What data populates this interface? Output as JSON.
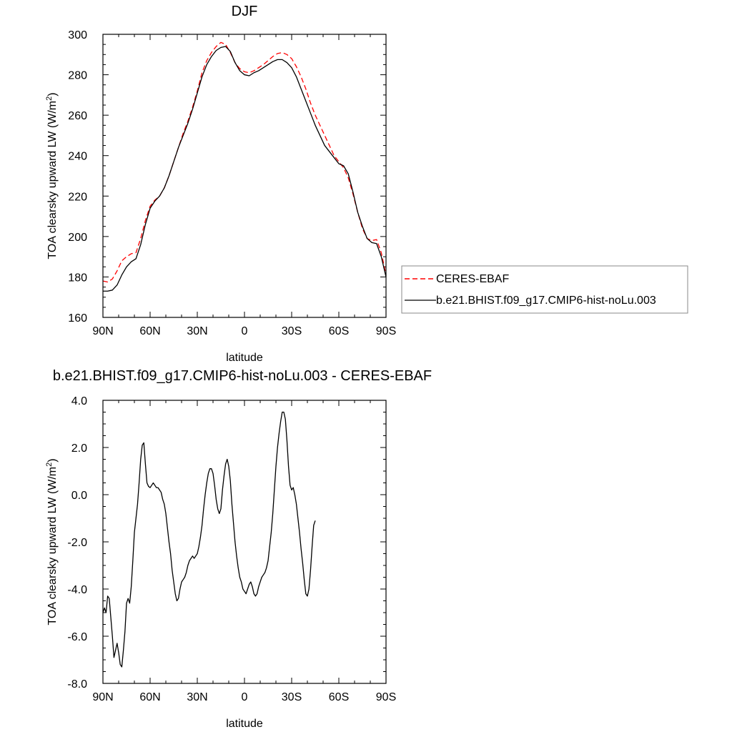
{
  "chart_data": [
    {
      "type": "line",
      "title": "DJF",
      "xlabel": "latitude",
      "ylabel_main": "TOA clearsky upward LW (W/m",
      "ylabel_sup": "2",
      "ylabel_tail": ")",
      "xlim": [
        90,
        -90
      ],
      "ylim": [
        160,
        300
      ],
      "x_ticks": [
        90,
        60,
        30,
        0,
        -30,
        -60,
        -90
      ],
      "x_tick_labels": [
        "90N",
        "60N",
        "30N",
        "0",
        "30S",
        "60S",
        "90S"
      ],
      "y_ticks": [
        160,
        180,
        200,
        220,
        240,
        260,
        280,
        300
      ],
      "y_tick_labels": [
        "160",
        "180",
        "200",
        "220",
        "240",
        "260",
        "280",
        "300"
      ],
      "grid": false,
      "legend_position": "right",
      "series": [
        {
          "name": "CERES-EBAF",
          "color": "#ff0000",
          "dash": "dashed",
          "points": [
            [
              90,
              178
            ],
            [
              87,
              177.5
            ],
            [
              84,
              179
            ],
            [
              81,
              183
            ],
            [
              78,
              188
            ],
            [
              75,
              190
            ],
            [
              72,
              191.5
            ],
            [
              69,
              192
            ],
            [
              66,
              199
            ],
            [
              63,
              208
            ],
            [
              60,
              215
            ],
            [
              57,
              218
            ],
            [
              54,
              220
            ],
            [
              51,
              224
            ],
            [
              48,
              230
            ],
            [
              45,
              237
            ],
            [
              42,
              244
            ],
            [
              39,
              251
            ],
            [
              36,
              257
            ],
            [
              33,
              264
            ],
            [
              30,
              272
            ],
            [
              27,
              281
            ],
            [
              24,
              287
            ],
            [
              21,
              291
            ],
            [
              18,
              294
            ],
            [
              15,
              296
            ],
            [
              12,
              295
            ],
            [
              9,
              291
            ],
            [
              6,
              286
            ],
            [
              3,
              283
            ],
            [
              0,
              281.5
            ],
            [
              -3,
              281
            ],
            [
              -6,
              282
            ],
            [
              -9,
              283.5
            ],
            [
              -12,
              285
            ],
            [
              -15,
              287
            ],
            [
              -18,
              289
            ],
            [
              -21,
              290.5
            ],
            [
              -24,
              291
            ],
            [
              -27,
              290
            ],
            [
              -30,
              288
            ],
            [
              -33,
              284
            ],
            [
              -36,
              279
            ],
            [
              -39,
              273
            ],
            [
              -42,
              266
            ],
            [
              -45,
              260
            ],
            [
              -48,
              255
            ],
            [
              -51,
              250
            ],
            [
              -54,
              245
            ],
            [
              -57,
              240
            ],
            [
              -60,
              237
            ],
            [
              -63,
              234
            ],
            [
              -66,
              229
            ],
            [
              -69,
              221
            ],
            [
              -72,
              212
            ],
            [
              -75,
              204
            ],
            [
              -78,
              199
            ],
            [
              -81,
              198
            ],
            [
              -84,
              198.5
            ],
            [
              -87,
              192
            ],
            [
              -90,
              181
            ]
          ]
        },
        {
          "name": "b.e21.BHIST.f09_g17.CMIP6-hist-noLu.003",
          "color": "#000000",
          "dash": "solid",
          "points": [
            [
              90,
              173
            ],
            [
              87,
              173
            ],
            [
              84,
              173.5
            ],
            [
              81,
              176
            ],
            [
              78,
              181
            ],
            [
              75,
              185
            ],
            [
              72,
              187.5
            ],
            [
              69,
              189
            ],
            [
              66,
              196
            ],
            [
              63,
              206
            ],
            [
              60,
              214
            ],
            [
              57,
              217.5
            ],
            [
              54,
              220
            ],
            [
              51,
              224
            ],
            [
              48,
              230
            ],
            [
              45,
              237
            ],
            [
              42,
              244
            ],
            [
              39,
              250
            ],
            [
              36,
              256
            ],
            [
              33,
              263
            ],
            [
              30,
              271
            ],
            [
              27,
              279
            ],
            [
              24,
              285
            ],
            [
              21,
              289
            ],
            [
              18,
              292
            ],
            [
              15,
              293.5
            ],
            [
              12,
              294
            ],
            [
              9,
              291.5
            ],
            [
              6,
              286
            ],
            [
              3,
              282
            ],
            [
              0,
              280
            ],
            [
              -3,
              279.5
            ],
            [
              -6,
              281
            ],
            [
              -9,
              282
            ],
            [
              -12,
              283.5
            ],
            [
              -15,
              285
            ],
            [
              -18,
              286.5
            ],
            [
              -21,
              287.5
            ],
            [
              -24,
              287.5
            ],
            [
              -27,
              286
            ],
            [
              -30,
              283.5
            ],
            [
              -33,
              279
            ],
            [
              -36,
              273
            ],
            [
              -39,
              267
            ],
            [
              -42,
              261
            ],
            [
              -45,
              255
            ],
            [
              -48,
              250
            ],
            [
              -51,
              245
            ],
            [
              -54,
              242
            ],
            [
              -57,
              239
            ],
            [
              -60,
              236
            ],
            [
              -63,
              235
            ],
            [
              -66,
              231
            ],
            [
              -69,
              222
            ],
            [
              -72,
              212
            ],
            [
              -75,
              205
            ],
            [
              -78,
              199
            ],
            [
              -81,
              197
            ],
            [
              -84,
              196.5
            ],
            [
              -87,
              190
            ],
            [
              -90,
              180
            ]
          ]
        }
      ]
    },
    {
      "type": "line",
      "title": "b.e21.BHIST.f09_g17.CMIP6-hist-noLu.003 - CERES-EBAF",
      "xlabel": "latitude",
      "ylabel_main": "TOA clearsky upward LW (W/m",
      "ylabel_sup": "2",
      "ylabel_tail": ")",
      "xlim": [
        90,
        -90
      ],
      "ylim": [
        -8,
        4
      ],
      "x_ticks": [
        90,
        60,
        30,
        0,
        -30,
        -60,
        -90
      ],
      "x_tick_labels": [
        "90N",
        "60N",
        "30N",
        "0",
        "30S",
        "60S",
        "90S"
      ],
      "y_ticks": [
        -8,
        -6,
        -4,
        -2,
        0,
        2,
        4
      ],
      "y_tick_labels": [
        "-8.0",
        "-6.0",
        "-4.0",
        "-2.0",
        "0.0",
        "2.0",
        "4.0"
      ],
      "grid": false,
      "series": [
        {
          "color": "#000000",
          "dash": "solid",
          "points": [
            [
              90,
              -5.0
            ],
            [
              89,
              -4.8
            ],
            [
              88,
              -5.0
            ],
            [
              87,
              -4.3
            ],
            [
              86,
              -4.4
            ],
            [
              85,
              -5.2
            ],
            [
              84,
              -6.0
            ],
            [
              83,
              -6.9
            ],
            [
              82,
              -6.6
            ],
            [
              81,
              -6.3
            ],
            [
              80,
              -6.7
            ],
            [
              79,
              -7.2
            ],
            [
              78,
              -7.3
            ],
            [
              77,
              -6.6
            ],
            [
              76,
              -5.8
            ],
            [
              75,
              -4.6
            ],
            [
              74,
              -4.4
            ],
            [
              73,
              -4.6
            ],
            [
              72,
              -3.9
            ],
            [
              71,
              -2.8
            ],
            [
              70,
              -1.6
            ],
            [
              69,
              -1.0
            ],
            [
              68,
              -0.4
            ],
            [
              67,
              0.5
            ],
            [
              66,
              1.5
            ],
            [
              65,
              2.1
            ],
            [
              64,
              2.2
            ],
            [
              63,
              1.3
            ],
            [
              62,
              0.5
            ],
            [
              61,
              0.35
            ],
            [
              60,
              0.3
            ],
            [
              59,
              0.4
            ],
            [
              58,
              0.5
            ],
            [
              57,
              0.4
            ],
            [
              56,
              0.3
            ],
            [
              55,
              0.3
            ],
            [
              54,
              0.2
            ],
            [
              53,
              0.1
            ],
            [
              52,
              -0.2
            ],
            [
              51,
              -0.4
            ],
            [
              50,
              -0.8
            ],
            [
              49,
              -1.4
            ],
            [
              48,
              -2.0
            ],
            [
              47,
              -2.5
            ],
            [
              46,
              -3.2
            ],
            [
              45,
              -3.7
            ],
            [
              44,
              -4.2
            ],
            [
              43,
              -4.5
            ],
            [
              42,
              -4.4
            ],
            [
              41,
              -4.0
            ],
            [
              40,
              -3.7
            ],
            [
              39,
              -3.6
            ],
            [
              38,
              -3.5
            ],
            [
              37,
              -3.3
            ],
            [
              36,
              -3.0
            ],
            [
              35,
              -2.8
            ],
            [
              34,
              -2.7
            ],
            [
              33,
              -2.6
            ],
            [
              32,
              -2.7
            ],
            [
              31,
              -2.6
            ],
            [
              30,
              -2.5
            ],
            [
              29,
              -2.2
            ],
            [
              28,
              -1.8
            ],
            [
              27,
              -1.3
            ],
            [
              26,
              -0.6
            ],
            [
              25,
              0.0
            ],
            [
              24,
              0.5
            ],
            [
              23,
              0.9
            ],
            [
              22,
              1.1
            ],
            [
              21,
              1.1
            ],
            [
              20,
              0.9
            ],
            [
              19,
              0.4
            ],
            [
              18,
              -0.2
            ],
            [
              17,
              -0.6
            ],
            [
              16,
              -0.8
            ],
            [
              15,
              -0.6
            ],
            [
              14,
              0.2
            ],
            [
              13,
              0.8
            ],
            [
              12,
              1.3
            ],
            [
              11,
              1.5
            ],
            [
              10,
              1.2
            ],
            [
              9,
              0.6
            ],
            [
              8,
              -0.4
            ],
            [
              7,
              -1.2
            ],
            [
              6,
              -2.0
            ],
            [
              5,
              -2.6
            ],
            [
              4,
              -3.1
            ],
            [
              3,
              -3.5
            ],
            [
              2,
              -3.7
            ],
            [
              1,
              -4.0
            ],
            [
              0,
              -4.1
            ],
            [
              -1,
              -4.2
            ],
            [
              -2,
              -4.0
            ],
            [
              -3,
              -3.8
            ],
            [
              -4,
              -3.7
            ],
            [
              -5,
              -3.9
            ],
            [
              -6,
              -4.2
            ],
            [
              -7,
              -4.3
            ],
            [
              -8,
              -4.2
            ],
            [
              -9,
              -3.9
            ],
            [
              -10,
              -3.7
            ],
            [
              -11,
              -3.5
            ],
            [
              -12,
              -3.4
            ],
            [
              -13,
              -3.3
            ],
            [
              -14,
              -3.1
            ],
            [
              -15,
              -2.8
            ],
            [
              -16,
              -2.2
            ],
            [
              -17,
              -1.6
            ],
            [
              -18,
              -0.8
            ],
            [
              -19,
              0.2
            ],
            [
              -20,
              1.2
            ],
            [
              -21,
              2.0
            ],
            [
              -22,
              2.6
            ],
            [
              -23,
              3.1
            ],
            [
              -24,
              3.5
            ],
            [
              -25,
              3.5
            ],
            [
              -26,
              3.2
            ],
            [
              -27,
              2.3
            ],
            [
              -28,
              1.2
            ],
            [
              -29,
              0.4
            ],
            [
              -30,
              0.2
            ],
            [
              -31,
              0.3
            ],
            [
              -32,
              0.0
            ],
            [
              -33,
              -0.4
            ],
            [
              -34,
              -1.0
            ],
            [
              -35,
              -1.6
            ],
            [
              -36,
              -2.3
            ],
            [
              -37,
              -2.9
            ],
            [
              -38,
              -3.6
            ],
            [
              -39,
              -4.2
            ],
            [
              -40,
              -4.3
            ],
            [
              -41,
              -4.0
            ],
            [
              -42,
              -3.2
            ],
            [
              -43,
              -2.2
            ],
            [
              -44,
              -1.3
            ],
            [
              -45,
              -1.1
            ]
          ],
          "x_start": 90,
          "x_step": 1
        }
      ]
    }
  ]
}
